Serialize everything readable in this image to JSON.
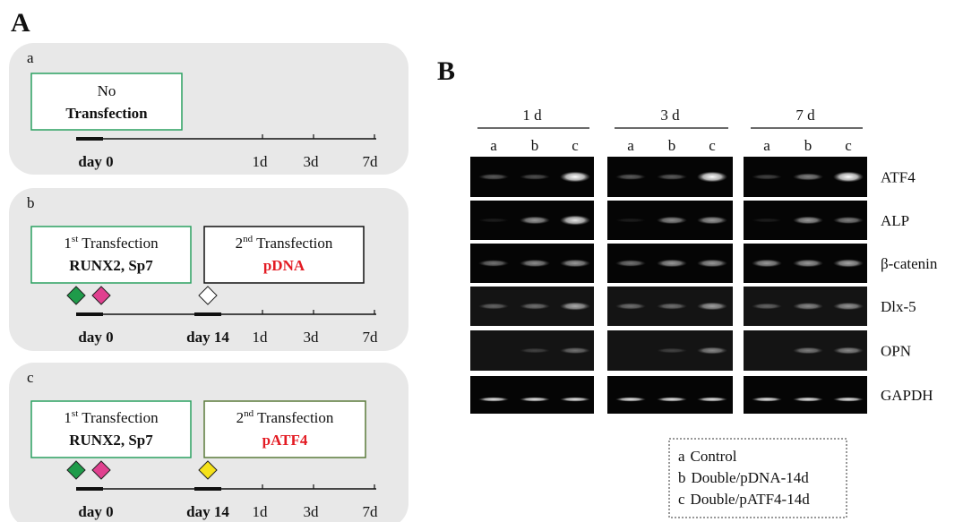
{
  "panel_a": {
    "label": "A",
    "rows": [
      {
        "label": "a",
        "boxes": [
          {
            "line1": "No",
            "line2": "Transfection"
          }
        ],
        "ticks": [
          "day 0",
          "1d",
          "3d",
          "7d"
        ]
      },
      {
        "label": "b",
        "boxes": [
          {
            "num": "1",
            "sup": "st",
            "text": "Transfection",
            "line2": "RUNX2, Sp7"
          },
          {
            "num": "2",
            "sup": "nd",
            "text": "Transfection",
            "line2": "pDNA"
          }
        ],
        "ticks": [
          "day 0",
          "day 14",
          "1d",
          "3d",
          "7d"
        ]
      },
      {
        "label": "c",
        "boxes": [
          {
            "num": "1",
            "sup": "st",
            "text": "Transfection",
            "line2": "RUNX2, Sp7"
          },
          {
            "num": "2",
            "sup": "nd",
            "text": "Transfection",
            "line2": "pATF4"
          }
        ],
        "ticks": [
          "day 0",
          "day 14",
          "1d",
          "3d",
          "7d"
        ]
      }
    ]
  },
  "panel_b": {
    "label": "B",
    "timepoints": [
      "1 d",
      "3 d",
      "7 d"
    ],
    "lanes": [
      "a",
      "b",
      "c"
    ],
    "genes": [
      "ATF4",
      "ALP",
      "β-catenin",
      "Dlx-5",
      "OPN",
      "GAPDH"
    ],
    "legend": [
      {
        "key": "a",
        "text": "Control"
      },
      {
        "key": "b",
        "text": "Double/pDNA-14d"
      },
      {
        "key": "c",
        "text": "Double/pATF4-14d"
      }
    ]
  }
}
